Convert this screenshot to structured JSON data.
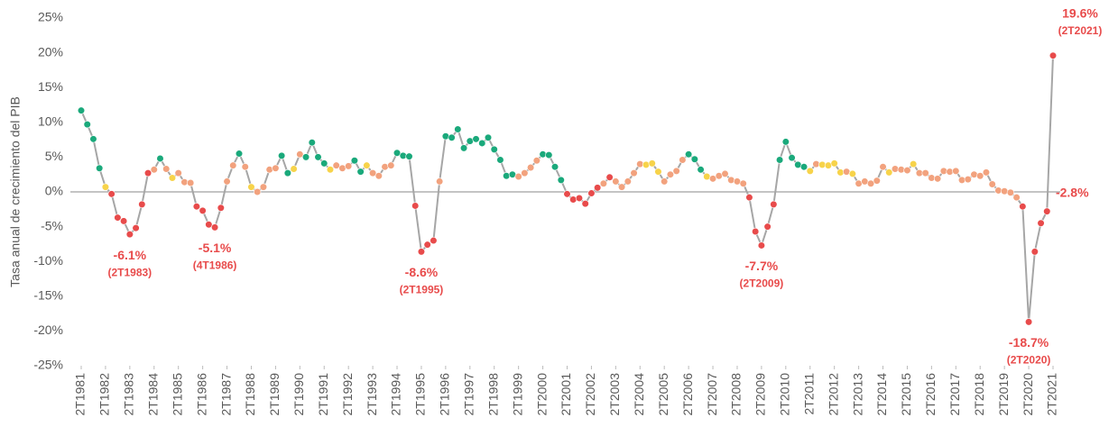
{
  "chart_data": {
    "type": "line",
    "y_axis_label": "Tasa anual de crecimiento del PIB",
    "ylim": [
      -25,
      25
    ],
    "yticks": [
      {
        "value": -25,
        "label": "-25%"
      },
      {
        "value": -20,
        "label": "-20%"
      },
      {
        "value": -15,
        "label": "-15%"
      },
      {
        "value": -10,
        "label": "-10%"
      },
      {
        "value": -5,
        "label": "-5%"
      },
      {
        "value": 0,
        "label": "0%"
      },
      {
        "value": 5,
        "label": "5%"
      },
      {
        "value": 10,
        "label": "10%"
      },
      {
        "value": 15,
        "label": "15%"
      },
      {
        "value": 20,
        "label": "20%"
      },
      {
        "value": 25,
        "label": "25%"
      }
    ],
    "grid": false,
    "line_color": "#a6a6a6",
    "categories": [
      "2T1981",
      null,
      null,
      null,
      "2T1982",
      null,
      null,
      null,
      "2T1983",
      null,
      null,
      null,
      "2T1984",
      null,
      null,
      null,
      "2T1985",
      null,
      null,
      null,
      "2T1986",
      null,
      null,
      null,
      "2T1987",
      null,
      null,
      null,
      "2T1988",
      null,
      null,
      null,
      "2T1989",
      null,
      null,
      null,
      "2T1990",
      null,
      null,
      null,
      "2T1991",
      null,
      null,
      null,
      "2T1992",
      null,
      null,
      null,
      "2T1993",
      null,
      null,
      null,
      "2T1994",
      null,
      null,
      null,
      "2T1995",
      null,
      null,
      null,
      "2T1996",
      null,
      null,
      null,
      "2T1997",
      null,
      null,
      null,
      "2T1998",
      null,
      null,
      null,
      "2T1999",
      null,
      null,
      null,
      "2T2000",
      null,
      null,
      null,
      "2T2001",
      null,
      null,
      null,
      "2T2002",
      null,
      null,
      null,
      "2T2003",
      null,
      null,
      null,
      "2T2004",
      null,
      null,
      null,
      "2T2005",
      null,
      null,
      null,
      "2T2006",
      null,
      null,
      null,
      "2T2007",
      null,
      null,
      null,
      "2T2008",
      null,
      null,
      null,
      "2T2009",
      null,
      null,
      null,
      "2T2010",
      null,
      null,
      null,
      "2T2011",
      null,
      null,
      null,
      "2T2012",
      null,
      null,
      null,
      "2T2013",
      null,
      null,
      null,
      "2T2014",
      null,
      null,
      null,
      "2T2015",
      null,
      null,
      null,
      "2T2016",
      null,
      null,
      null,
      "2T2017",
      null,
      null,
      null,
      "2T2018",
      null,
      null,
      null,
      "2T2019",
      null,
      null,
      null,
      "2T2020",
      null,
      null,
      null,
      "2T2021"
    ],
    "series": [
      {
        "values": [
          11.7,
          9.7,
          7.6,
          3.4,
          0.7,
          -0.3,
          -3.7,
          -4.2,
          -6.1,
          -5.2,
          -1.8,
          2.7,
          3.2,
          4.8,
          3.3,
          2.0,
          2.7,
          1.4,
          1.3,
          -2.1,
          -2.7,
          -4.7,
          -5.1,
          -2.3,
          1.5,
          3.8,
          5.5,
          3.6,
          0.7,
          0.0,
          0.7,
          3.2,
          3.4,
          5.2,
          2.7,
          3.3,
          5.4,
          5.0,
          7.1,
          5.0,
          4.1,
          3.2,
          3.8,
          3.4,
          3.7,
          4.5,
          2.9,
          3.8,
          2.7,
          2.3,
          3.6,
          3.8,
          5.6,
          5.2,
          5.1,
          -2.0,
          -8.6,
          -7.6,
          -7.0,
          1.5,
          8.0,
          7.8,
          9.0,
          6.3,
          7.3,
          7.6,
          7.0,
          7.8,
          6.1,
          4.6,
          2.3,
          2.5,
          2.2,
          2.7,
          3.5,
          4.5,
          5.4,
          5.3,
          3.6,
          1.7,
          -0.3,
          -1.1,
          -0.9,
          -1.7,
          -0.2,
          0.6,
          1.2,
          2.1,
          1.5,
          0.7,
          1.5,
          2.7,
          4.0,
          3.9,
          4.1,
          2.9,
          1.5,
          2.5,
          3.0,
          4.6,
          5.4,
          4.7,
          3.2,
          2.2,
          1.9,
          2.3,
          2.6,
          1.7,
          1.5,
          1.2,
          -0.8,
          -5.7,
          -7.7,
          -5.0,
          -1.8,
          4.6,
          7.2,
          4.9,
          3.9,
          3.6,
          3.0,
          4.0,
          3.9,
          3.8,
          4.1,
          2.8,
          2.9,
          2.6,
          1.2,
          1.5,
          1.2,
          1.6,
          3.6,
          2.8,
          3.3,
          3.2,
          3.1,
          4.0,
          2.7,
          2.7,
          2.0,
          1.9,
          3.0,
          2.9,
          3.0,
          1.7,
          1.8,
          2.5,
          2.3,
          2.8,
          1.1,
          0.2,
          0.1,
          -0.1,
          -0.8,
          -2.1,
          -18.7,
          -8.6,
          -4.5,
          -2.8,
          19.6
        ],
        "colors": [
          "#1aa97b",
          "#1aa97b",
          "#1aa97b",
          "#1aa97b",
          "#f7d34a",
          "#e84b4b",
          "#e84b4b",
          "#e84b4b",
          "#e84b4b",
          "#e84b4b",
          "#e84b4b",
          "#e84b4b",
          "#f2a27e",
          "#1aa97b",
          "#f2a27e",
          "#f7d34a",
          "#f2a27e",
          "#f2a27e",
          "#f2a27e",
          "#e84b4b",
          "#e84b4b",
          "#e84b4b",
          "#e84b4b",
          "#e84b4b",
          "#f2a27e",
          "#f2a27e",
          "#1aa97b",
          "#f2a27e",
          "#f7d34a",
          "#f2a27e",
          "#f2a27e",
          "#f2a27e",
          "#f2a27e",
          "#1aa97b",
          "#1aa97b",
          "#f7d34a",
          "#f2a27e",
          "#1aa97b",
          "#1aa97b",
          "#1aa97b",
          "#1aa97b",
          "#f7d34a",
          "#f2a27e",
          "#f2a27e",
          "#f2a27e",
          "#1aa97b",
          "#1aa97b",
          "#f7d34a",
          "#f2a27e",
          "#f2a27e",
          "#f2a27e",
          "#f2a27e",
          "#1aa97b",
          "#1aa97b",
          "#1aa97b",
          "#e84b4b",
          "#e84b4b",
          "#e84b4b",
          "#e84b4b",
          "#f2a27e",
          "#1aa97b",
          "#1aa97b",
          "#1aa97b",
          "#1aa97b",
          "#1aa97b",
          "#1aa97b",
          "#1aa97b",
          "#1aa97b",
          "#1aa97b",
          "#1aa97b",
          "#1aa97b",
          "#1aa97b",
          "#f2a27e",
          "#f2a27e",
          "#f2a27e",
          "#f2a27e",
          "#1aa97b",
          "#1aa97b",
          "#1aa97b",
          "#1aa97b",
          "#e84b4b",
          "#e84b4b",
          "#e84b4b",
          "#e84b4b",
          "#e84b4b",
          "#e84b4b",
          "#f2a27e",
          "#e84b4b",
          "#f2a27e",
          "#f2a27e",
          "#f2a27e",
          "#f2a27e",
          "#f2a27e",
          "#f7d34a",
          "#f7d34a",
          "#f7d34a",
          "#f2a27e",
          "#f2a27e",
          "#f2a27e",
          "#f2a27e",
          "#1aa97b",
          "#1aa97b",
          "#1aa97b",
          "#f7d34a",
          "#f2a27e",
          "#f2a27e",
          "#f2a27e",
          "#f2a27e",
          "#f2a27e",
          "#f2a27e",
          "#e84b4b",
          "#e84b4b",
          "#e84b4b",
          "#e84b4b",
          "#e84b4b",
          "#1aa97b",
          "#1aa97b",
          "#1aa97b",
          "#1aa97b",
          "#1aa97b",
          "#f7d34a",
          "#f2a27e",
          "#f7d34a",
          "#f7d34a",
          "#f7d34a",
          "#f7d34a",
          "#f2a27e",
          "#f7d34a",
          "#f2a27e",
          "#f2a27e",
          "#f2a27e",
          "#f2a27e",
          "#f2a27e",
          "#f7d34a",
          "#f2a27e",
          "#f2a27e",
          "#f2a27e",
          "#f7d34a",
          "#f2a27e",
          "#f2a27e",
          "#f2a27e",
          "#f2a27e",
          "#f2a27e",
          "#f2a27e",
          "#f2a27e",
          "#f2a27e",
          "#f2a27e",
          "#f2a27e",
          "#f2a27e",
          "#f2a27e",
          "#f2a27e",
          "#f2a27e",
          "#f2a27e",
          "#f2a27e",
          "#f2a27e",
          "#e84b4b",
          "#e84b4b",
          "#e84b4b",
          "#e84b4b",
          "#e84b4b",
          "#e84b4b",
          "#1aa97b"
        ],
        "value_labels": [
          null,
          null,
          null,
          null,
          null,
          null,
          null,
          null,
          "-6.1%",
          null,
          null,
          null,
          null,
          null,
          null,
          null,
          null,
          null,
          null,
          null,
          null,
          null,
          "-5.1%",
          null,
          null,
          null,
          null,
          null,
          null,
          null,
          null,
          null,
          null,
          null,
          null,
          null,
          null,
          null,
          null,
          null,
          null,
          null,
          null,
          null,
          null,
          null,
          null,
          null,
          null,
          null,
          null,
          null,
          null,
          null,
          null,
          null,
          "-8.6%",
          null,
          null,
          null,
          null,
          null,
          null,
          null,
          null,
          null,
          null,
          null,
          null,
          null,
          null,
          null,
          null,
          null,
          null,
          null,
          null,
          null,
          null,
          null,
          null,
          null,
          null,
          null,
          null,
          null,
          null,
          null,
          null,
          null,
          null,
          null,
          null,
          null,
          null,
          null,
          null,
          null,
          null,
          null,
          null,
          null,
          null,
          null,
          null,
          null,
          null,
          null,
          null,
          null,
          null,
          null,
          "-7.7%",
          null,
          null,
          null,
          null,
          null,
          null,
          null,
          null,
          null,
          null,
          null,
          null,
          null,
          null,
          null,
          null,
          null,
          null,
          null,
          null,
          null,
          null,
          null,
          null,
          null,
          null,
          null,
          null,
          null,
          null,
          null,
          null,
          null,
          null,
          null,
          null,
          null,
          null,
          null,
          null,
          null,
          null,
          null,
          "-18.7%",
          null,
          null,
          "-2.8%",
          "19.6%"
        ],
        "period_labels": [
          null,
          null,
          null,
          null,
          null,
          null,
          null,
          null,
          "(2T1983)",
          null,
          null,
          null,
          null,
          null,
          null,
          null,
          null,
          null,
          null,
          null,
          null,
          null,
          "(4T1986)",
          null,
          null,
          null,
          null,
          null,
          null,
          null,
          null,
          null,
          null,
          null,
          null,
          null,
          null,
          null,
          null,
          null,
          null,
          null,
          null,
          null,
          null,
          null,
          null,
          null,
          null,
          null,
          null,
          null,
          null,
          null,
          null,
          null,
          "(2T1995)",
          null,
          null,
          null,
          null,
          null,
          null,
          null,
          null,
          null,
          null,
          null,
          null,
          null,
          null,
          null,
          null,
          null,
          null,
          null,
          null,
          null,
          null,
          null,
          null,
          null,
          null,
          null,
          null,
          null,
          null,
          null,
          null,
          null,
          null,
          null,
          null,
          null,
          null,
          null,
          null,
          null,
          null,
          null,
          null,
          null,
          null,
          null,
          null,
          null,
          null,
          null,
          null,
          null,
          null,
          null,
          "(2T2009)",
          null,
          null,
          null,
          null,
          null,
          null,
          null,
          null,
          null,
          null,
          null,
          null,
          null,
          null,
          null,
          null,
          null,
          null,
          null,
          null,
          null,
          null,
          null,
          null,
          null,
          null,
          null,
          null,
          null,
          null,
          null,
          null,
          null,
          null,
          null,
          null,
          null,
          null,
          null,
          null,
          null,
          null,
          null,
          "(2T2020)",
          null,
          null,
          null,
          "(2T2021)"
        ]
      }
    ]
  }
}
